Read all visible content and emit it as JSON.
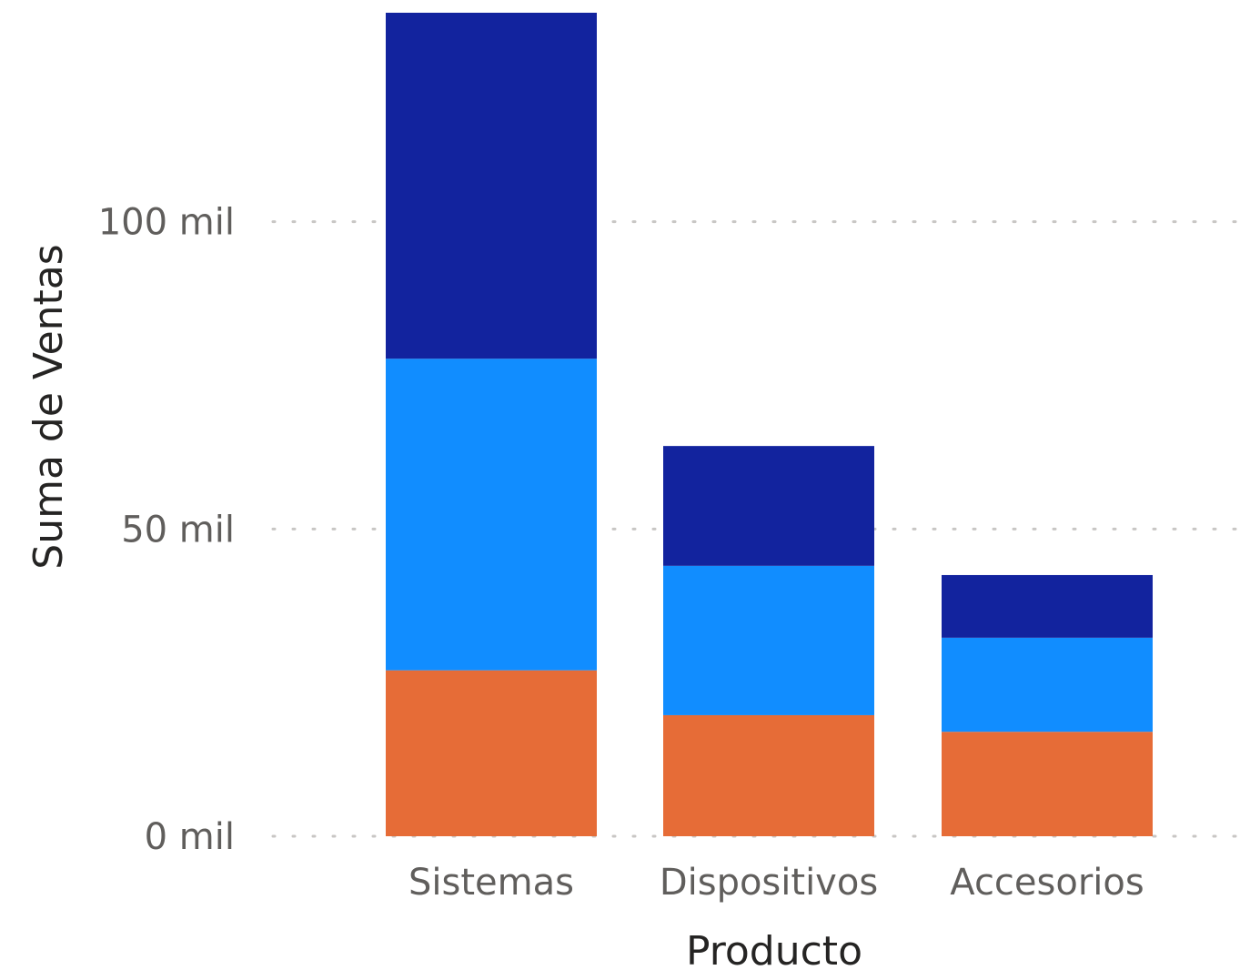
{
  "chart_data": {
    "type": "bar",
    "stacked": true,
    "categories": [
      "Sistemas",
      "Dispositivos",
      "Accesorios"
    ],
    "series": [
      {
        "color": "#E66C37",
        "values": [
          27000,
          19700,
          17000
        ]
      },
      {
        "color": "#118DFF",
        "values": [
          50700,
          24300,
          15300
        ]
      },
      {
        "color": "#12239E",
        "values": [
          56300,
          19500,
          10200
        ]
      }
    ],
    "xlabel": "Producto",
    "ylabel": "Suma de Ventas",
    "ylim": [
      0,
      134000
    ],
    "yticks": [
      {
        "value": 0,
        "label": "0 mil"
      },
      {
        "value": 50000,
        "label": "50 mil"
      },
      {
        "value": 100000,
        "label": "100 mil"
      }
    ],
    "grid": true,
    "legend": "none"
  }
}
